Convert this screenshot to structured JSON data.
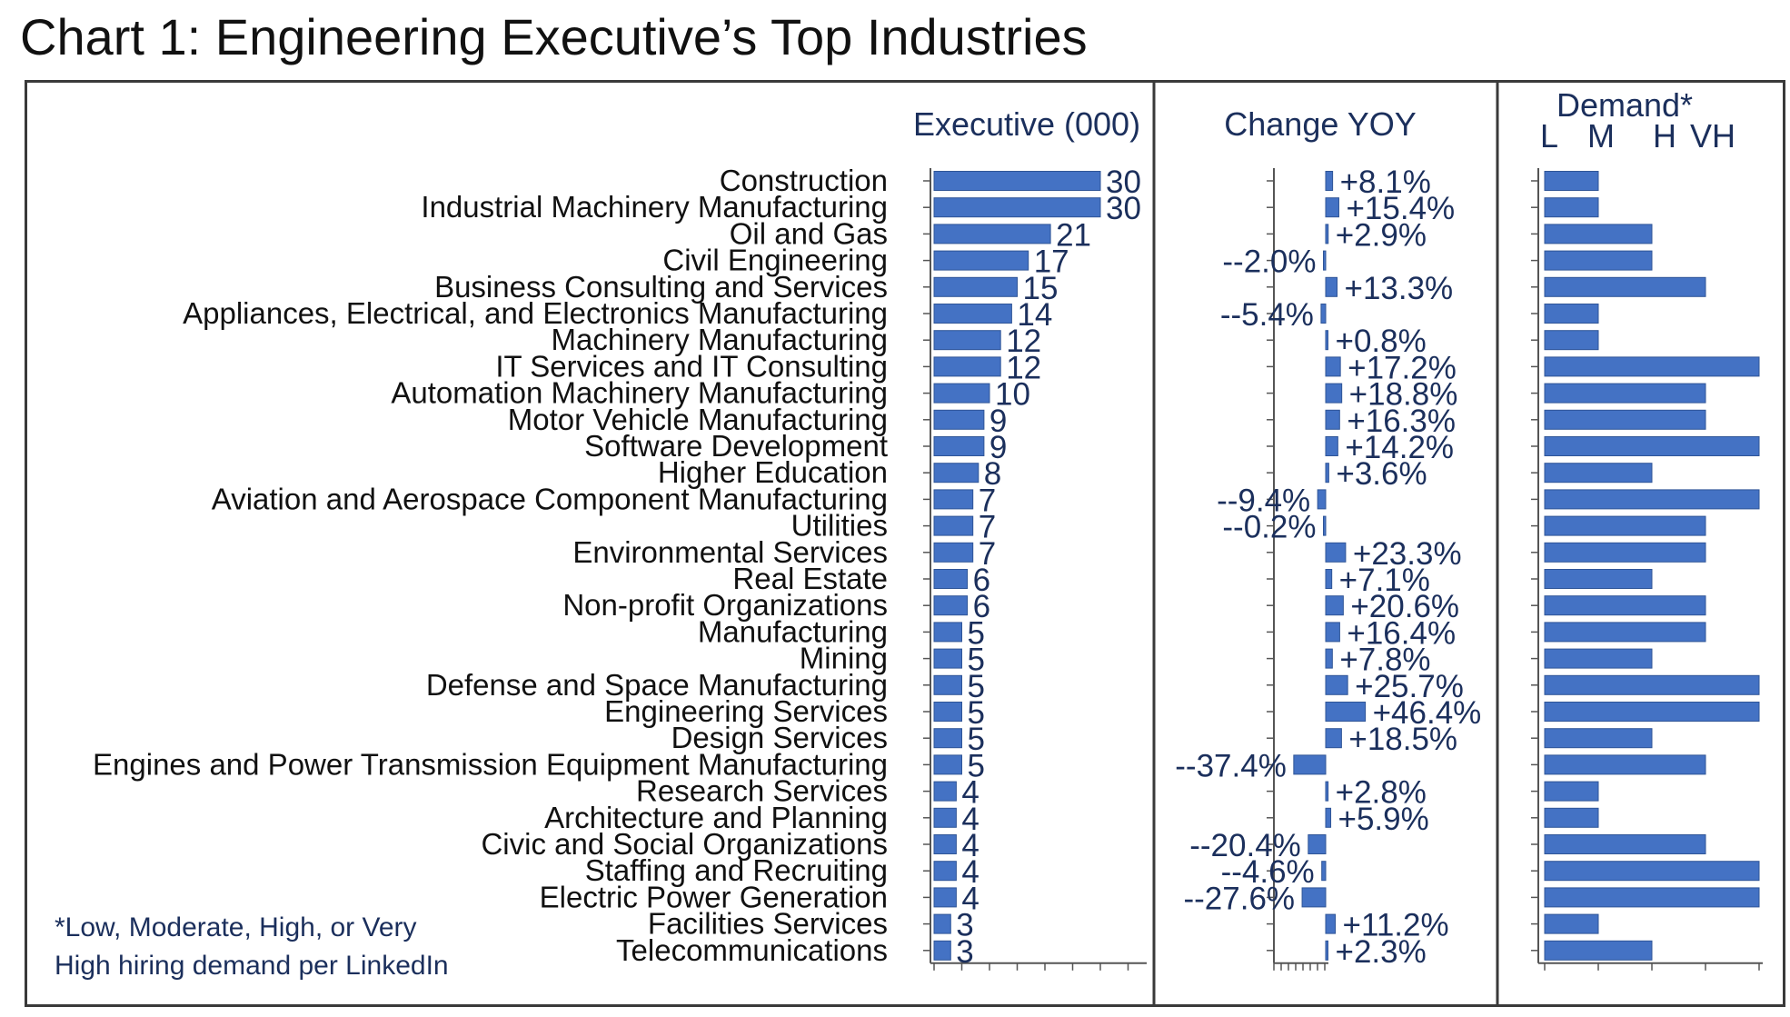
{
  "chart_data": {
    "type": "bar",
    "title": "Chart 1: Engineering Executive’s Top Industries",
    "categories": [
      "Construction",
      "Industrial Machinery Manufacturing",
      "Oil and Gas",
      "Civil Engineering",
      "Business Consulting and Services",
      "Appliances, Electrical, and Electronics Manufacturing",
      "Machinery Manufacturing",
      "IT Services and IT Consulting",
      "Automation Machinery Manufacturing",
      "Motor Vehicle Manufacturing",
      "Software Development",
      "Higher Education",
      "Aviation and Aerospace Component Manufacturing",
      "Utilities",
      "Environmental Services",
      "Real Estate",
      "Non-profit Organizations",
      "Manufacturing",
      "Mining",
      "Defense and Space Manufacturing",
      "Engineering Services",
      "Design Services",
      "Engines and Power Transmission Equipment Manufacturing",
      "Research Services",
      "Architecture and Planning",
      "Civic and Social Organizations",
      "Staffing and Recruiting",
      "Electric Power Generation",
      "Facilities Services",
      "Telecommunications"
    ],
    "panels": [
      {
        "name": "executives",
        "header": "Executive (000)",
        "type": "bar",
        "xlim": [
          0,
          35
        ],
        "values": [
          30,
          30,
          21,
          17,
          15,
          14,
          12,
          12,
          10,
          9,
          9,
          8,
          7,
          7,
          7,
          6,
          6,
          5,
          5,
          5,
          5,
          5,
          5,
          4,
          4,
          4,
          4,
          4,
          3,
          3
        ],
        "labels": [
          "30",
          "30",
          "21",
          "17",
          "15",
          "14",
          "12",
          "12",
          "10",
          "9",
          "9",
          "8",
          "7",
          "7",
          "7",
          "6",
          "6",
          "5",
          "5",
          "5",
          "5",
          "5",
          "5",
          "4",
          "4",
          "4",
          "4",
          "4",
          "3",
          "3"
        ]
      },
      {
        "name": "change_yoy",
        "header": "Change YOY",
        "type": "bar",
        "unit": "%",
        "values": [
          8.1,
          15.4,
          2.9,
          -2.0,
          13.3,
          -5.4,
          0.8,
          17.2,
          18.8,
          16.3,
          14.2,
          3.6,
          -9.4,
          -0.2,
          23.3,
          7.1,
          20.6,
          16.4,
          7.8,
          25.7,
          46.4,
          18.5,
          -37.4,
          2.8,
          5.9,
          -20.4,
          -4.6,
          -27.6,
          11.2,
          2.3
        ],
        "labels": [
          "+8.1%",
          "+15.4%",
          "+2.9%",
          "--2.0%",
          "+13.3%",
          "--5.4%",
          "+0.8%",
          "+17.2%",
          "+18.8%",
          "+16.3%",
          "+14.2%",
          "+3.6%",
          "--9.4%",
          "--0.2%",
          "+23.3%",
          "+7.1%",
          "+20.6%",
          "+16.4%",
          "+7.8%",
          "+25.7%",
          "+46.4%",
          "+18.5%",
          "--37.4%",
          "+2.8%",
          "+5.9%",
          "--20.4%",
          "--4.6%",
          "--27.6%",
          "+11.2%",
          "+2.3%"
        ]
      },
      {
        "name": "demand",
        "header": "Demand*",
        "type": "bar",
        "levels": [
          "L",
          "M",
          "H",
          "VH"
        ],
        "values": [
          1,
          1,
          2,
          2,
          3,
          1,
          1,
          4,
          3,
          3,
          4,
          2,
          4,
          3,
          3,
          2,
          3,
          3,
          2,
          4,
          4,
          2,
          3,
          1,
          1,
          3,
          4,
          4,
          1,
          2
        ]
      }
    ],
    "footnote": [
      "*Low, Moderate, High, or Very",
      "High hiring demand per LinkedIn"
    ],
    "colors": {
      "bar": "#4472c4",
      "bar_edge": "#2f5597",
      "text": "#1b2f5c"
    }
  }
}
